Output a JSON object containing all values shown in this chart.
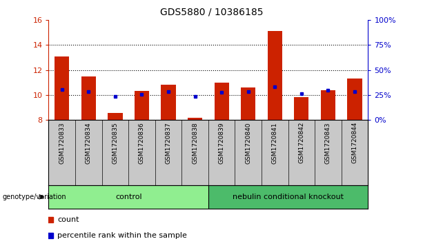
{
  "title": "GDS5880 / 10386185",
  "samples": [
    "GSM1720833",
    "GSM1720834",
    "GSM1720835",
    "GSM1720836",
    "GSM1720837",
    "GSM1720838",
    "GSM1720839",
    "GSM1720840",
    "GSM1720841",
    "GSM1720842",
    "GSM1720843",
    "GSM1720844"
  ],
  "bar_tops": [
    13.1,
    11.5,
    8.55,
    10.35,
    10.8,
    8.2,
    11.0,
    10.6,
    15.1,
    9.85,
    10.4,
    11.3
  ],
  "bar_bottom": 8.0,
  "blue_dots": [
    10.45,
    10.25,
    9.9,
    10.05,
    10.25,
    9.88,
    10.2,
    10.25,
    10.65,
    10.1,
    10.4,
    10.25
  ],
  "ylim": [
    8,
    16
  ],
  "right_ylim": [
    0,
    100
  ],
  "right_yticks": [
    0,
    25,
    50,
    75,
    100
  ],
  "right_yticklabels": [
    "0%",
    "25%",
    "50%",
    "75%",
    "100%"
  ],
  "bar_color": "#CC2200",
  "dot_color": "#0000CC",
  "group1_label": "control",
  "group2_label": "nebulin conditional knockout",
  "group1_bg": "#90EE90",
  "group2_bg": "#4CBB6A",
  "genotype_label": "genotype/variation",
  "legend_count": "count",
  "legend_percentile": "percentile rank within the sample",
  "bg_color": "#FFFFFF",
  "plot_bg": "#FFFFFF",
  "tick_bg": "#C8C8C8",
  "yticks_left": [
    8,
    10,
    12,
    14,
    16
  ],
  "ytick_color_left": "#CC2200",
  "ytick_color_right": "#0000CC",
  "fig_width": 6.13,
  "fig_height": 3.63,
  "dpi": 100
}
